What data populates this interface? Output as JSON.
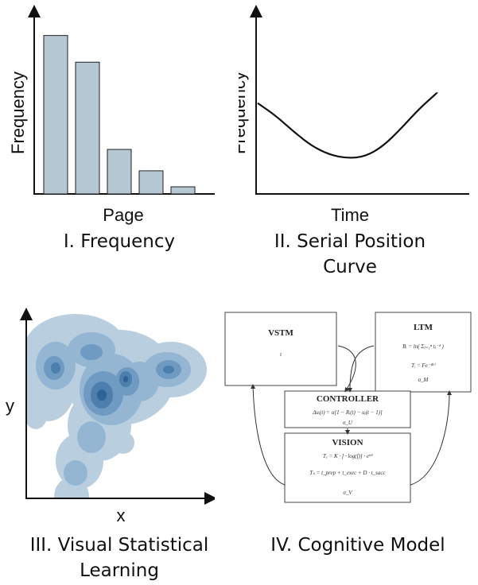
{
  "panels": {
    "frequency": {
      "caption": "I. Frequency",
      "chart_data": {
        "type": "bar",
        "xlabel": "Page",
        "ylabel": "Frequency",
        "ylim": [
          0,
          1
        ],
        "values": [
          0.89,
          0.74,
          0.25,
          0.13,
          0.04
        ],
        "bar_color": "#b6c7d4"
      }
    },
    "serial": {
      "caption_line1": "II. Serial Position",
      "caption_line2": "Curve",
      "chart_data": {
        "type": "line",
        "xlabel": "Time",
        "ylabel": "Frequency",
        "xlim": [
          0,
          1
        ],
        "ylim": [
          0,
          1
        ],
        "x": [
          0.0,
          0.1,
          0.2,
          0.3,
          0.4,
          0.5,
          0.6,
          0.7,
          0.8,
          0.9,
          1.0
        ],
        "y": [
          0.51,
          0.44,
          0.35,
          0.27,
          0.22,
          0.2,
          0.21,
          0.27,
          0.37,
          0.48,
          0.57
        ]
      }
    },
    "vsl": {
      "caption_line1": "III. Visual Statistical",
      "caption_line2": "Learning",
      "xlabel": "x",
      "ylabel": "y",
      "colors": [
        "#b9cfe0",
        "#94b6d2",
        "#6f9ac2",
        "#4c7eae",
        "#2f6396"
      ]
    },
    "cognitive": {
      "caption": "IV. Cognitive Model",
      "boxes": {
        "vstm": {
          "title": "VSTM",
          "symbol": "τ"
        },
        "ltm": {
          "title": "LTM",
          "eq1": "Bᵢ = ln( Σⱼ₌₁ⁿ tⱼ⁻ᵈ )",
          "eq2": "Tᵢ = Fe⁻ᶠᴮⁱ",
          "sigma": "σ_M"
        },
        "controller": {
          "title": "CONTROLLER",
          "eq1": "Δuᵢ(t) = α[1 − Rᵢ(t) − uᵢ(t − 1)]",
          "sigma": "σ_U"
        },
        "vision": {
          "title": "VISION",
          "eq1": "Tₑ = K · [−log(f)] · eᵏᶿ",
          "eq2": "Tₛ = t_prep + t_exec + D · t_sacc",
          "sigma": "σ_V"
        }
      }
    }
  }
}
